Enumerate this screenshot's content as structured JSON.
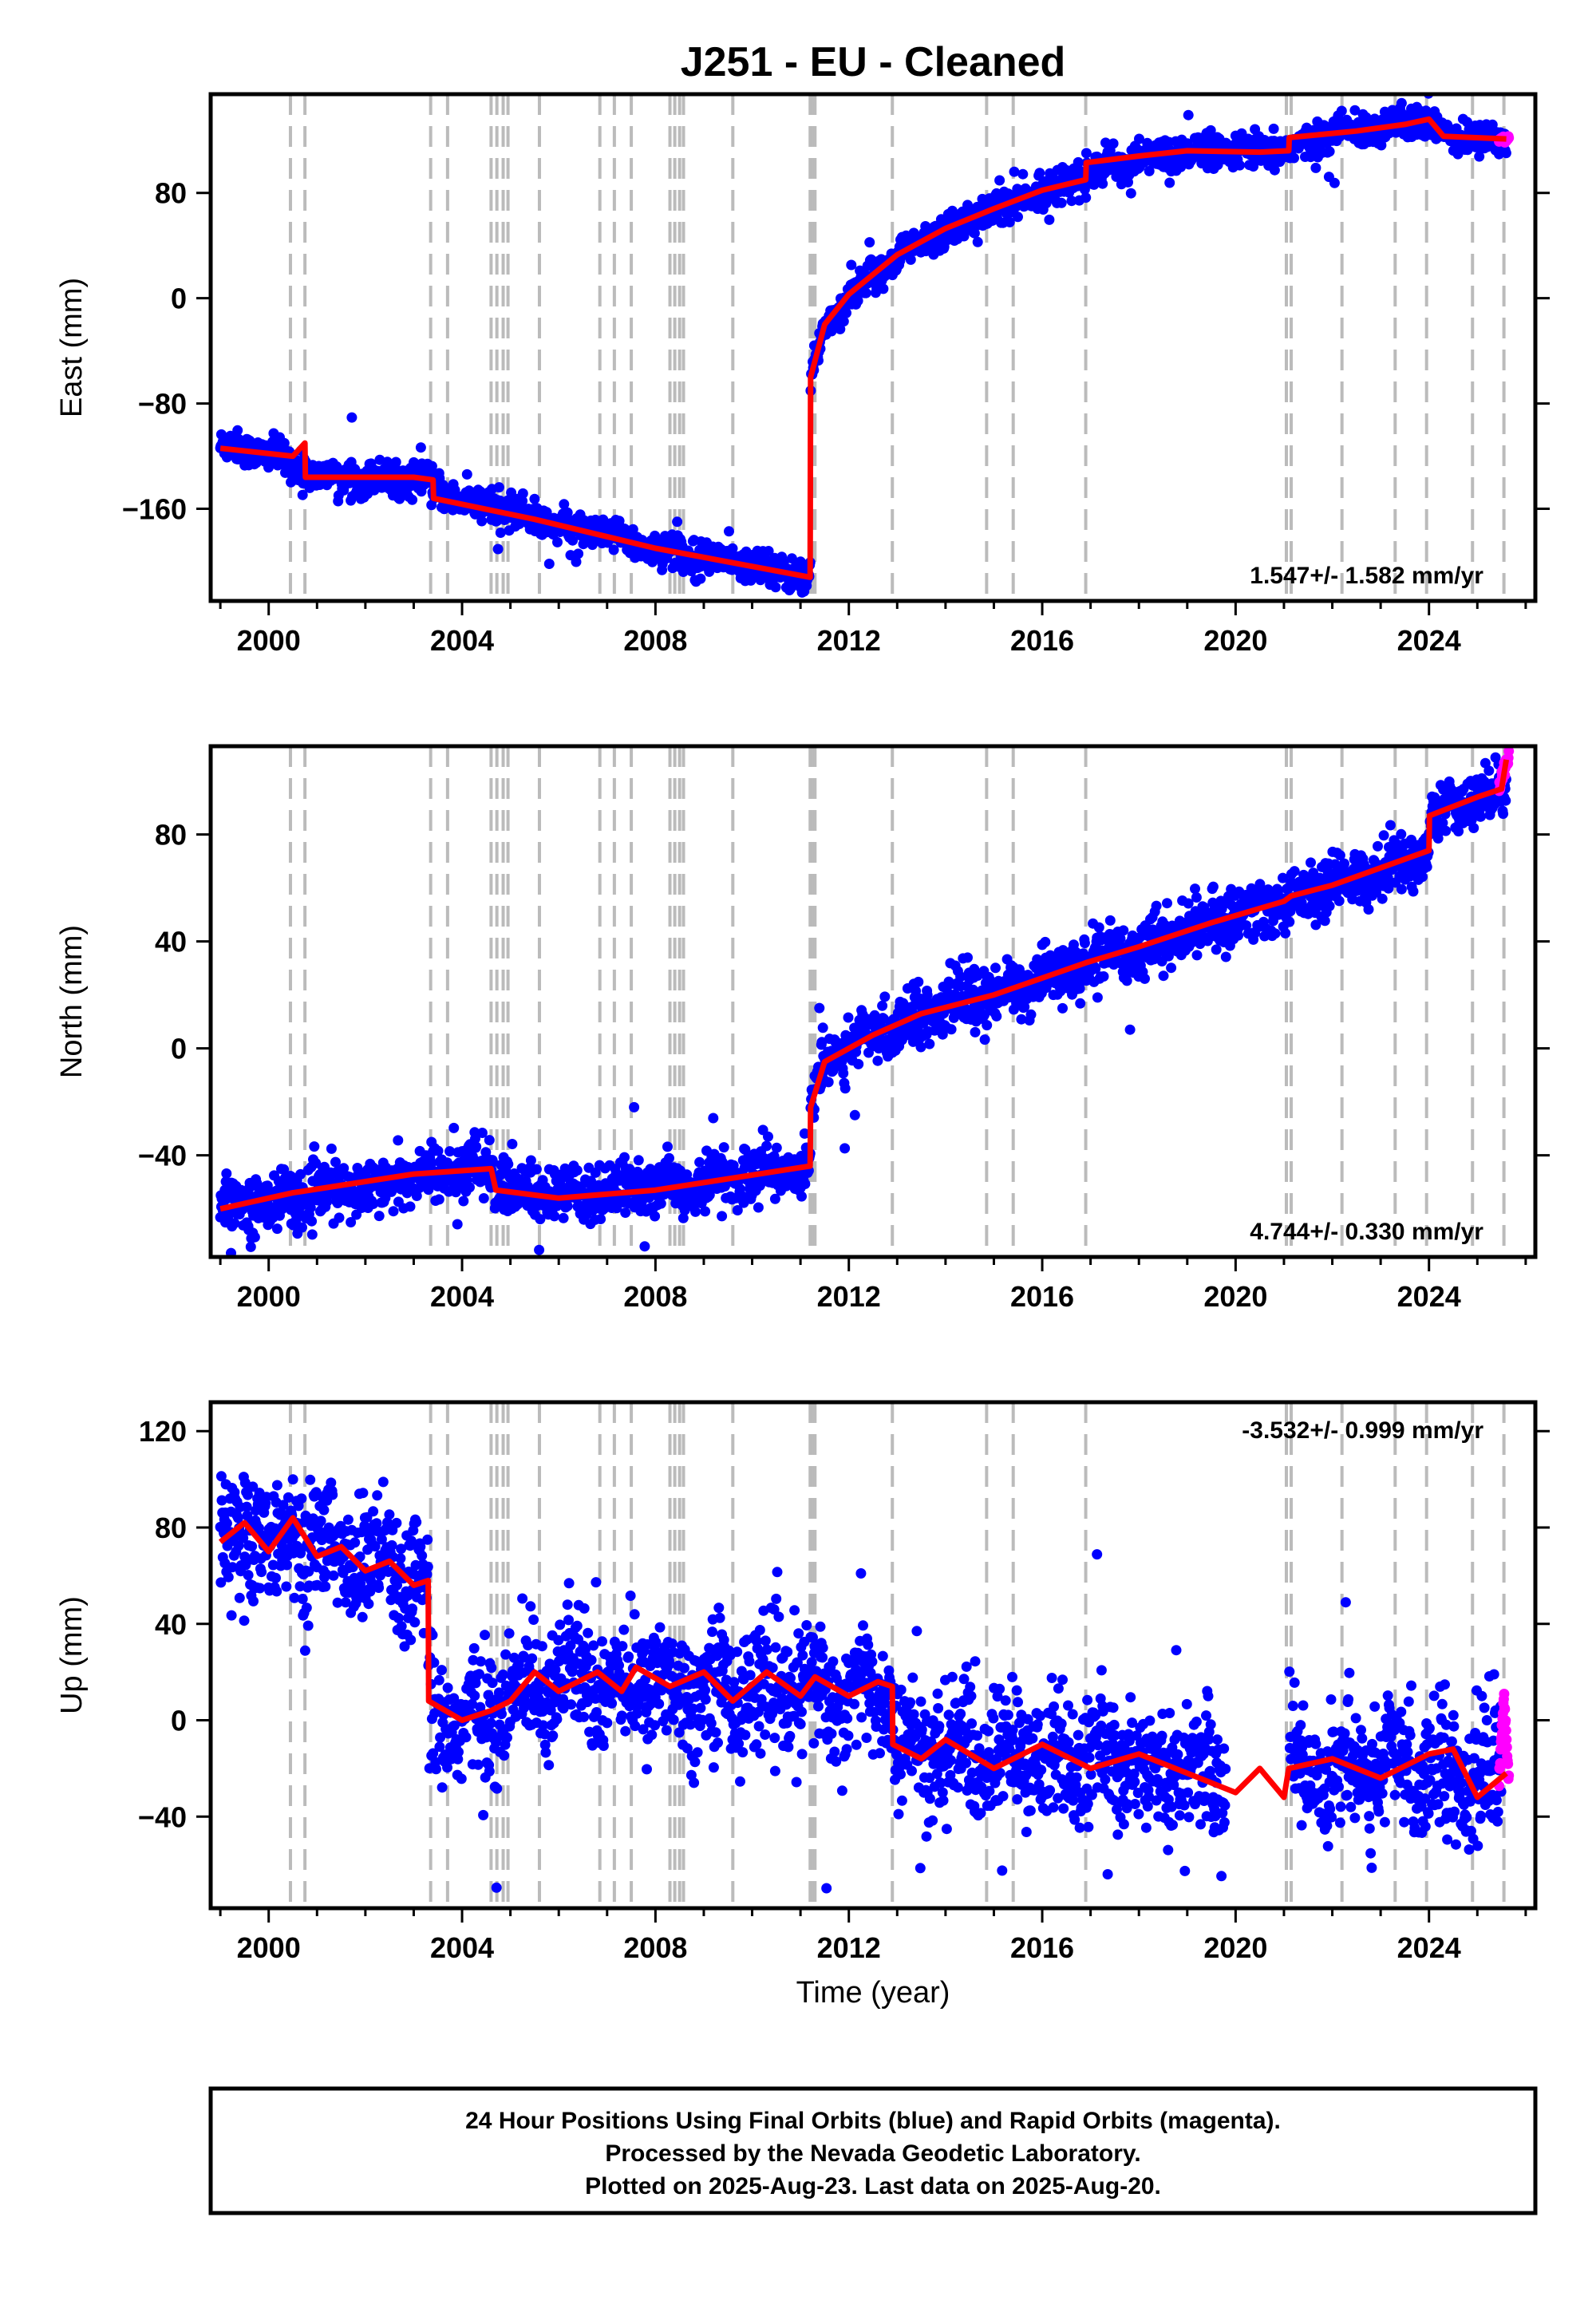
{
  "title": "J251  - EU - Cleaned",
  "colors": {
    "final": "#0000ff",
    "rapid": "#ff00ff",
    "model": "#ff0000",
    "events": "#bbbbbb"
  },
  "events": [
    2000.45,
    2000.75,
    2003.35,
    2003.7,
    2004.6,
    2004.72,
    2004.85,
    2004.95,
    2005.6,
    2006.85,
    2007.15,
    2007.5,
    2008.3,
    2008.4,
    2008.5,
    2008.58,
    2009.6,
    2011.2,
    2011.25,
    2011.3,
    2012.9,
    2014.85,
    2015.4,
    2016.9,
    2021.05,
    2021.15,
    2022.2,
    2023.3,
    2023.95,
    2024.9,
    2025.55
  ],
  "footer": {
    "line1": "24 Hour Positions Using Final Orbits (blue) and Rapid Orbits (magenta).",
    "line2": "Processed by the Nevada Geodetic Laboratory.",
    "line3": "Plotted on 2025-Aug-23. Last data on 2025-Aug-20."
  },
  "chart_data": [
    {
      "type": "scatter",
      "ylabel": "East (mm)",
      "xlim": [
        1998.8,
        2026.2
      ],
      "ylim": [
        -230,
        155
      ],
      "xticks": [
        "2000",
        "2004",
        "2008",
        "2012",
        "2016",
        "2020",
        "2024"
      ],
      "yticks": [
        "-160",
        "-80",
        "0",
        "80"
      ],
      "rate": "1.547+/- 1.582 mm/yr",
      "rate_position": "bottom-right",
      "model": [
        [
          1999.0,
          -114
        ],
        [
          2000.5,
          -120
        ],
        [
          2000.75,
          -110
        ],
        [
          2000.76,
          -136
        ],
        [
          2003.0,
          -136
        ],
        [
          2003.4,
          -138
        ],
        [
          2003.41,
          -152
        ],
        [
          2005.5,
          -168
        ],
        [
          2008.0,
          -190
        ],
        [
          2011.2,
          -212
        ],
        [
          2011.21,
          -60
        ],
        [
          2011.5,
          -20
        ],
        [
          2012.0,
          3
        ],
        [
          2013.0,
          33
        ],
        [
          2014.0,
          53
        ],
        [
          2015.0,
          68
        ],
        [
          2016.0,
          82
        ],
        [
          2016.9,
          90
        ],
        [
          2016.91,
          103
        ],
        [
          2018.0,
          108
        ],
        [
          2019.0,
          112
        ],
        [
          2020.5,
          111
        ],
        [
          2021.1,
          112
        ],
        [
          2021.11,
          122
        ],
        [
          2022.5,
          127
        ],
        [
          2023.5,
          132
        ],
        [
          2024.0,
          136
        ],
        [
          2024.3,
          123
        ],
        [
          2025.6,
          121
        ]
      ],
      "final_series": [
        [
          1999.0,
          -112
        ],
        [
          2000.0,
          -118
        ],
        [
          2001.0,
          -135
        ],
        [
          2002.0,
          -137
        ],
        [
          2003.0,
          -137
        ],
        [
          2004.0,
          -154
        ],
        [
          2005.0,
          -162
        ],
        [
          2006.0,
          -173
        ],
        [
          2007.0,
          -180
        ],
        [
          2008.0,
          -190
        ],
        [
          2009.0,
          -197
        ],
        [
          2010.0,
          -203
        ],
        [
          2011.0,
          -210
        ],
        [
          2011.2,
          -213
        ],
        [
          2011.21,
          -62
        ],
        [
          2011.5,
          -22
        ],
        [
          2012.0,
          2
        ],
        [
          2013.0,
          32
        ],
        [
          2014.0,
          52
        ],
        [
          2015.0,
          67
        ],
        [
          2016.0,
          81
        ],
        [
          2017.0,
          95
        ],
        [
          2018.0,
          106
        ],
        [
          2019.0,
          111
        ],
        [
          2020.0,
          111
        ],
        [
          2021.0,
          112
        ],
        [
          2022.0,
          125
        ],
        [
          2023.0,
          130
        ],
        [
          2024.0,
          134
        ],
        [
          2024.5,
          122
        ],
        [
          2025.6,
          120
        ]
      ],
      "final_scatter": 6,
      "rapid_series": [
        [
          2025.45,
          120
        ],
        [
          2025.65,
          121
        ]
      ]
    },
    {
      "type": "scatter",
      "ylabel": "North (mm)",
      "xlim": [
        1998.8,
        2026.2
      ],
      "ylim": [
        -78,
        113
      ],
      "xticks": [
        "2000",
        "2004",
        "2008",
        "2012",
        "2016",
        "2020",
        "2024"
      ],
      "yticks": [
        "-40",
        "0",
        "40",
        "80"
      ],
      "rate": "4.744+/- 0.330 mm/yr",
      "rate_position": "bottom-right",
      "model": [
        [
          1999.0,
          -60
        ],
        [
          2000.5,
          -54
        ],
        [
          2003.0,
          -47
        ],
        [
          2004.6,
          -45
        ],
        [
          2004.7,
          -53
        ],
        [
          2006.0,
          -56
        ],
        [
          2008.0,
          -53
        ],
        [
          2011.2,
          -44
        ],
        [
          2011.21,
          -22
        ],
        [
          2011.5,
          -5
        ],
        [
          2012.5,
          5
        ],
        [
          2013.5,
          13
        ],
        [
          2015.0,
          20
        ],
        [
          2016.9,
          32
        ],
        [
          2018.0,
          38
        ],
        [
          2019.5,
          47
        ],
        [
          2021.0,
          55
        ],
        [
          2021.15,
          57
        ],
        [
          2022.0,
          61
        ],
        [
          2024.0,
          74
        ],
        [
          2024.01,
          87
        ],
        [
          2025.0,
          94
        ],
        [
          2025.5,
          97
        ],
        [
          2025.6,
          108
        ]
      ],
      "final_series": [
        [
          1999.0,
          -59
        ],
        [
          2001.0,
          -55
        ],
        [
          2003.0,
          -48
        ],
        [
          2004.6,
          -44
        ],
        [
          2004.7,
          -52
        ],
        [
          2006.0,
          -55
        ],
        [
          2008.0,
          -52
        ],
        [
          2011.2,
          -44
        ],
        [
          2011.21,
          -21
        ],
        [
          2011.5,
          -4
        ],
        [
          2012.5,
          5
        ],
        [
          2013.5,
          13
        ],
        [
          2015.0,
          20
        ],
        [
          2016.9,
          31
        ],
        [
          2018.0,
          38
        ],
        [
          2019.5,
          47
        ],
        [
          2020.5,
          53
        ],
        [
          2021.1,
          55
        ],
        [
          2022.0,
          61
        ],
        [
          2024.0,
          73
        ],
        [
          2024.01,
          86
        ],
        [
          2025.0,
          93
        ],
        [
          2025.6,
          98
        ]
      ],
      "final_scatter": 5,
      "rapid_series": [
        [
          2025.45,
          98
        ],
        [
          2025.65,
          109
        ]
      ]
    },
    {
      "type": "scatter",
      "xlabel": "Time (year)",
      "ylabel": "Up (mm)",
      "xlim": [
        1998.8,
        2026.2
      ],
      "ylim": [
        -78,
        132
      ],
      "xticks": [
        "2000",
        "2004",
        "2008",
        "2012",
        "2016",
        "2020",
        "2024"
      ],
      "yticks": [
        "-40",
        "0",
        "40",
        "80",
        "120"
      ],
      "rate": "-3.532+/- 0.999 mm/yr",
      "rate_position": "top-right",
      "model": [
        [
          1999.0,
          74
        ],
        [
          1999.5,
          82
        ],
        [
          2000.0,
          70
        ],
        [
          2000.5,
          84
        ],
        [
          2001.0,
          68
        ],
        [
          2001.5,
          72
        ],
        [
          2002.0,
          62
        ],
        [
          2002.5,
          66
        ],
        [
          2003.0,
          56
        ],
        [
          2003.3,
          58
        ],
        [
          2003.31,
          8
        ],
        [
          2004.0,
          0
        ],
        [
          2004.6,
          4
        ],
        [
          2005.0,
          8
        ],
        [
          2005.5,
          20
        ],
        [
          2006.0,
          12
        ],
        [
          2006.8,
          20
        ],
        [
          2007.3,
          12
        ],
        [
          2007.6,
          22
        ],
        [
          2008.3,
          14
        ],
        [
          2009.0,
          20
        ],
        [
          2009.6,
          8
        ],
        [
          2010.3,
          20
        ],
        [
          2011.0,
          10
        ],
        [
          2011.3,
          18
        ],
        [
          2012.0,
          10
        ],
        [
          2012.6,
          16
        ],
        [
          2012.9,
          14
        ],
        [
          2012.91,
          -10
        ],
        [
          2013.5,
          -16
        ],
        [
          2014.0,
          -8
        ],
        [
          2015.0,
          -20
        ],
        [
          2016.0,
          -10
        ],
        [
          2017.0,
          -20
        ],
        [
          2018.0,
          -14
        ],
        [
          2019.0,
          -22
        ],
        [
          2020.0,
          -30
        ],
        [
          2020.5,
          -20
        ],
        [
          2021.0,
          -32
        ],
        [
          2021.1,
          -20
        ],
        [
          2022.0,
          -16
        ],
        [
          2023.0,
          -24
        ],
        [
          2024.0,
          -14
        ],
        [
          2024.5,
          -12
        ],
        [
          2025.0,
          -32
        ],
        [
          2025.6,
          -22
        ]
      ],
      "final_series": [
        [
          1999.0,
          76
        ],
        [
          2000.0,
          75
        ],
        [
          2001.0,
          72
        ],
        [
          2002.0,
          66
        ],
        [
          2003.0,
          58
        ],
        [
          2003.3,
          57
        ],
        [
          2003.31,
          6
        ],
        [
          2004.0,
          -2
        ],
        [
          2005.0,
          6
        ],
        [
          2005.5,
          18
        ],
        [
          2007.0,
          16
        ],
        [
          2009.0,
          14
        ],
        [
          2011.0,
          12
        ],
        [
          2012.9,
          12
        ],
        [
          2012.91,
          -12
        ],
        [
          2014.0,
          -14
        ],
        [
          2016.0,
          -16
        ],
        [
          2018.0,
          -18
        ],
        [
          2019.8,
          -22
        ],
        [
          2019.81,
          null
        ],
        [
          2021.1,
          null
        ],
        [
          2021.11,
          -20
        ],
        [
          2022.5,
          -20
        ],
        [
          2024.0,
          -18
        ],
        [
          2025.0,
          -26
        ],
        [
          2025.5,
          -28
        ]
      ],
      "final_scatter": 13,
      "rapid_series": [
        [
          2025.45,
          -24
        ],
        [
          2025.55,
          10
        ],
        [
          2025.6,
          -6
        ],
        [
          2025.65,
          -26
        ]
      ]
    }
  ]
}
